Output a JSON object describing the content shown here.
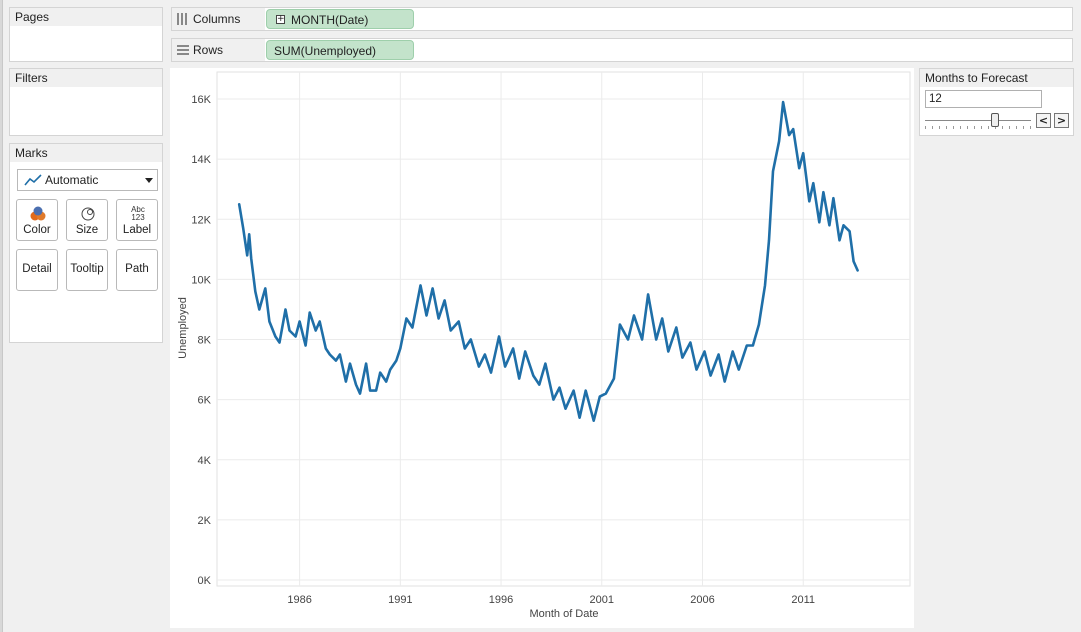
{
  "cards": {
    "pages": "Pages",
    "filters": "Filters",
    "marks": "Marks"
  },
  "marks": {
    "mark_type": "Automatic",
    "buttons": [
      "Color",
      "Size",
      "Label",
      "Detail",
      "Tooltip",
      "Path"
    ],
    "label_icon_text": [
      "Abc",
      "123"
    ]
  },
  "shelves": {
    "columns_label": "Columns",
    "columns_pill": "MONTH(Date)",
    "rows_label": "Rows",
    "rows_pill": "SUM(Unemployed)"
  },
  "forecast": {
    "title": "Months to Forecast",
    "value": "12",
    "slider_fraction": 0.66,
    "prev": "<",
    "next": ">"
  },
  "colors": {
    "line": "#1f6fa8",
    "pill": "#c3e3cb",
    "grid": "#ebebeb"
  },
  "chart_data": {
    "type": "line",
    "xlabel": "Month of Date",
    "ylabel": "Unemployed",
    "x_ticks": [
      "1986",
      "1991",
      "1996",
      "2001",
      "2006",
      "2011"
    ],
    "y_ticks": [
      "0K",
      "2K",
      "4K",
      "6K",
      "8K",
      "10K",
      "12K",
      "14K",
      "16K"
    ],
    "xlim": [
      1981.9,
      2016.3
    ],
    "ylim": [
      -200,
      16900
    ],
    "grid": true,
    "series": [
      {
        "x": [
          1983.0,
          1983.2,
          1983.4,
          1983.5,
          1983.6,
          1983.8,
          1984.0,
          1984.3,
          1984.5,
          1984.8,
          1985.0,
          1985.3,
          1985.5,
          1985.8,
          1986.0,
          1986.3,
          1986.5,
          1986.8,
          1987.0,
          1987.3,
          1987.5,
          1987.8,
          1988.0,
          1988.3,
          1988.5,
          1988.8,
          1989.0,
          1989.3,
          1989.5,
          1989.8,
          1990.0,
          1990.3,
          1990.5,
          1990.8,
          1991.0,
          1991.3,
          1991.6,
          1992.0,
          1992.3,
          1992.6,
          1992.9,
          1993.2,
          1993.5,
          1993.9,
          1994.2,
          1994.5,
          1994.9,
          1995.2,
          1995.5,
          1995.9,
          1996.2,
          1996.6,
          1996.9,
          1997.2,
          1997.6,
          1997.9,
          1998.2,
          1998.6,
          1998.9,
          1999.2,
          1999.6,
          1999.9,
          2000.2,
          2000.6,
          2000.9,
          2001.2,
          2001.6,
          2001.9,
          2002.3,
          2002.6,
          2003.0,
          2003.3,
          2003.7,
          2004.0,
          2004.3,
          2004.7,
          2005.0,
          2005.4,
          2005.7,
          2006.1,
          2006.4,
          2006.8,
          2007.1,
          2007.5,
          2007.8,
          2008.2,
          2008.5,
          2008.8,
          2009.1,
          2009.3,
          2009.5,
          2009.8,
          2010.0,
          2010.3,
          2010.5,
          2010.8,
          2011.0,
          2011.3,
          2011.5,
          2011.8,
          2012.0,
          2012.3,
          2012.5,
          2012.8,
          2013.0,
          2013.3,
          2013.5,
          2013.7
        ],
        "y": [
          12500,
          11700,
          10800,
          11500,
          10700,
          9600,
          9000,
          9700,
          8600,
          8100,
          7900,
          9000,
          8300,
          8100,
          8600,
          7800,
          8900,
          8300,
          8600,
          7700,
          7500,
          7300,
          7500,
          6600,
          7200,
          6500,
          6200,
          7200,
          6300,
          6300,
          6900,
          6600,
          7000,
          7300,
          7700,
          8700,
          8400,
          9800,
          8800,
          9700,
          8700,
          9300,
          8300,
          8600,
          7700,
          8000,
          7100,
          7500,
          6900,
          8100,
          7100,
          7700,
          6700,
          7600,
          6800,
          6500,
          7200,
          6000,
          6400,
          5700,
          6300,
          5400,
          6300,
          5300,
          6100,
          6200,
          6700,
          8500,
          8000,
          8800,
          8000,
          9500,
          8000,
          8700,
          7600,
          8400,
          7400,
          7900,
          7000,
          7600,
          6800,
          7500,
          6600,
          7600,
          7000,
          7800,
          7800,
          8500,
          9800,
          11300,
          13600,
          14600,
          15900,
          14800,
          15000,
          13700,
          14200,
          12600,
          13200,
          11900,
          12900,
          11800,
          12700,
          11300,
          11800,
          11600,
          10600,
          10300
        ]
      }
    ]
  }
}
